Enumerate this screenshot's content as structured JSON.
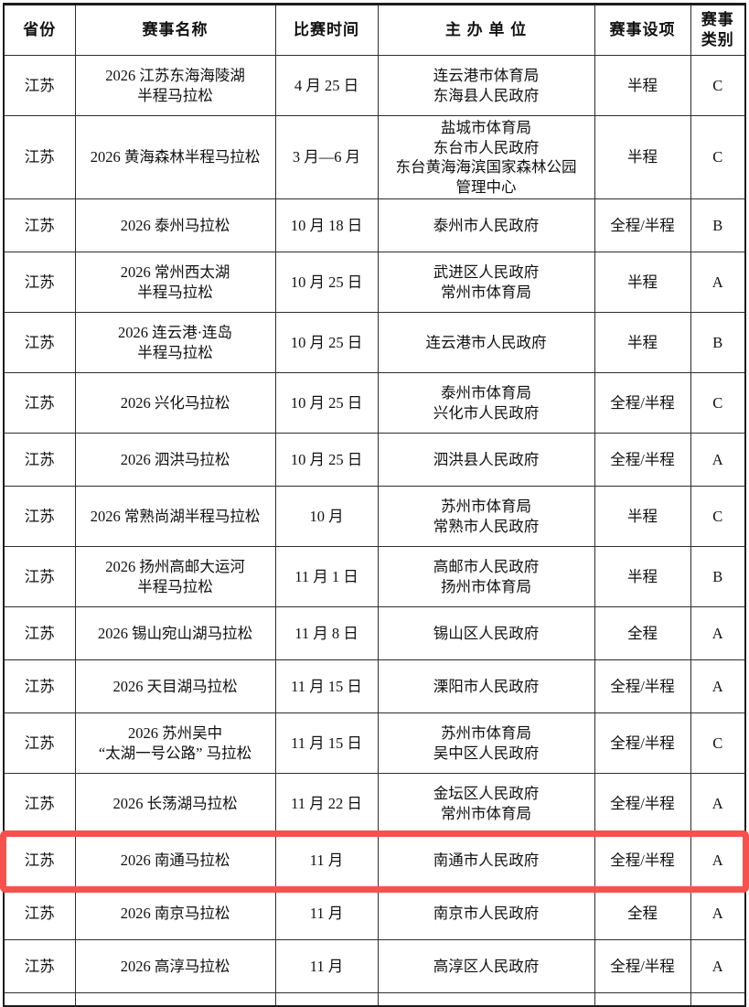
{
  "table": {
    "headers": [
      "省份",
      "赛事名称",
      "比赛时间",
      "主 办 单 位",
      "赛事设项",
      "赛事类别"
    ],
    "rows": [
      {
        "province": "江苏",
        "name": "2026 江苏东海海陵湖\n半程马拉松",
        "date": "4 月 25 日",
        "organizer": "连云港市体育局\n东海县人民政府",
        "events": "半程",
        "category": "C",
        "highlighted": false
      },
      {
        "province": "江苏",
        "name": "2026 黄海森林半程马拉松",
        "date": "3 月—6 月",
        "organizer": "盐城市体育局\n东台市人民政府\n东台黄海海滨国家森林公园\n管理中心",
        "events": "半程",
        "category": "C",
        "highlighted": false
      },
      {
        "province": "江苏",
        "name": "2026 泰州马拉松",
        "date": "10 月 18 日",
        "organizer": "泰州市人民政府",
        "events": "全程/半程",
        "category": "B",
        "highlighted": false
      },
      {
        "province": "江苏",
        "name": "2026 常州西太湖\n半程马拉松",
        "date": "10 月 25 日",
        "organizer": "武进区人民政府\n常州市体育局",
        "events": "半程",
        "category": "A",
        "highlighted": false
      },
      {
        "province": "江苏",
        "name": "2026 连云港·连岛\n半程马拉松",
        "date": "10 月 25 日",
        "organizer": "连云港市人民政府",
        "events": "半程",
        "category": "B",
        "highlighted": false
      },
      {
        "province": "江苏",
        "name": "2026 兴化马拉松",
        "date": "10 月 25 日",
        "organizer": "泰州市体育局\n兴化市人民政府",
        "events": "全程/半程",
        "category": "C",
        "highlighted": false
      },
      {
        "province": "江苏",
        "name": "2026 泗洪马拉松",
        "date": "10 月 25 日",
        "organizer": "泗洪县人民政府",
        "events": "全程/半程",
        "category": "A",
        "highlighted": false
      },
      {
        "province": "江苏",
        "name": "2026 常熟尚湖半程马拉松",
        "date": "10 月",
        "organizer": "苏州市体育局\n常熟市人民政府",
        "events": "半程",
        "category": "C",
        "highlighted": false
      },
      {
        "province": "江苏",
        "name": "2026 扬州高邮大运河\n半程马拉松",
        "date": "11 月 1 日",
        "organizer": "高邮市人民政府\n扬州市体育局",
        "events": "半程",
        "category": "B",
        "highlighted": false
      },
      {
        "province": "江苏",
        "name": "2026 锡山宛山湖马拉松",
        "date": "11 月 8 日",
        "organizer": "锡山区人民政府",
        "events": "全程",
        "category": "A",
        "highlighted": false
      },
      {
        "province": "江苏",
        "name": "2026 天目湖马拉松",
        "date": "11 月 15 日",
        "organizer": "溧阳市人民政府",
        "events": "全程/半程",
        "category": "A",
        "highlighted": false
      },
      {
        "province": "江苏",
        "name": "2026 苏州吴中\n“太湖一号公路” 马拉松",
        "date": "11 月 15 日",
        "organizer": "苏州市体育局\n吴中区人民政府",
        "events": "全程/半程",
        "category": "C",
        "highlighted": false
      },
      {
        "province": "江苏",
        "name": "2026 长荡湖马拉松",
        "date": "11 月 22 日",
        "organizer": "金坛区人民政府\n常州市体育局",
        "events": "全程/半程",
        "category": "A",
        "highlighted": false
      },
      {
        "province": "江苏",
        "name": "2026 南通马拉松",
        "date": "11 月",
        "organizer": "南通市人民政府",
        "events": "全程/半程",
        "category": "A",
        "highlighted": true
      },
      {
        "province": "江苏",
        "name": "2026 南京马拉松",
        "date": "11 月",
        "organizer": "南京市人民政府",
        "events": "全程",
        "category": "A",
        "highlighted": false
      },
      {
        "province": "江苏",
        "name": "2026 高淳马拉松",
        "date": "11 月",
        "organizer": "高淳区人民政府",
        "events": "全程/半程",
        "category": "A",
        "highlighted": false
      }
    ]
  },
  "annotation": {
    "type": "highlight-box",
    "color": "#f7514e",
    "highlighted_row_name": "2026 南通马拉松"
  }
}
